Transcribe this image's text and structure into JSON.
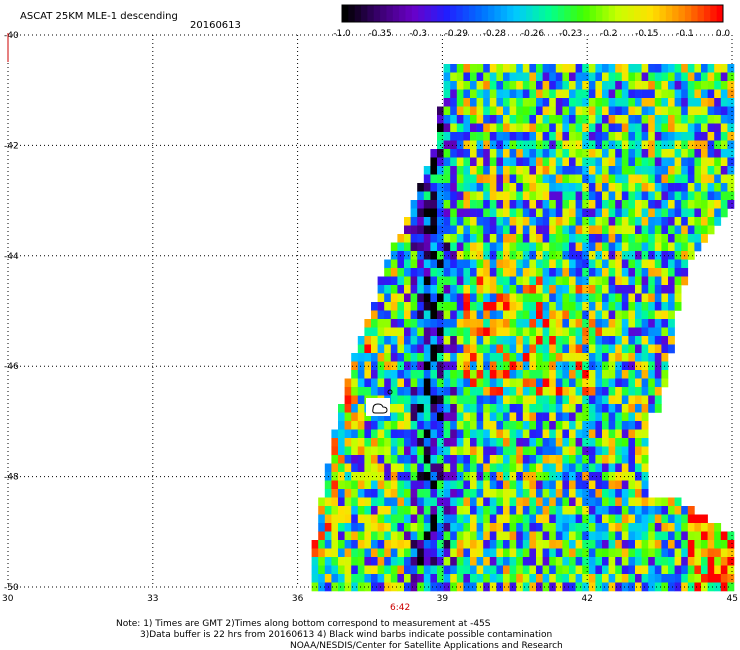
{
  "header": {
    "title": "ASCAT 25KM MLE-1 descending",
    "date": "20160613"
  },
  "colorbar": {
    "labels": [
      "-1.0",
      "-0.35",
      "-0.3",
      "-0.29",
      "-0.28",
      "-0.26",
      "-0.23",
      "-0.2",
      "-0.15",
      "-0.1",
      "0.0"
    ],
    "colors": [
      "#000000",
      "#3a0070",
      "#6a00c8",
      "#2020ff",
      "#0070ff",
      "#00c8ff",
      "#00ff90",
      "#40ff00",
      "#c8ff00",
      "#ffe000",
      "#ff8000",
      "#ff0000"
    ]
  },
  "time_label": "6:42",
  "notes": {
    "line1": "Note: 1) Times are GMT 2)Times along bottom correspond to measurement at -45S",
    "line2": "3)Data buffer is 22 hrs from 20160613 4) Black wind barbs indicate possible contamination",
    "line3": "NOAA/NESDIS/Center for Satellite Applications and Research"
  },
  "chart_data": {
    "type": "heatmap",
    "title": "ASCAT 25KM MLE-1 descending",
    "date": "20160613",
    "xlim": [
      30,
      45
    ],
    "ylim": [
      -50,
      -40
    ],
    "x_ticks": [
      "30",
      "33",
      "36",
      "39",
      "42",
      "45"
    ],
    "y_ticks": [
      "-40",
      "-42",
      "-44",
      "-46",
      "-48",
      "-50"
    ],
    "grid": true,
    "value_scale": {
      "labels": [
        "-1.0",
        "-0.35",
        "-0.3",
        "-0.29",
        "-0.28",
        "-0.26",
        "-0.23",
        "-0.2",
        "-0.15",
        "-0.1",
        "0.0"
      ]
    },
    "swath": {
      "description_edges_lon_at_lat": [
        {
          "lat": -40.5,
          "west": 39.0,
          "east": 45.0
        },
        {
          "lat": -41.8,
          "west": 38.8,
          "east": 45.0
        },
        {
          "lat": -43.0,
          "west": 38.3,
          "east": 45.0
        },
        {
          "lat": -44.0,
          "west": 37.8,
          "east": 44.1
        },
        {
          "lat": -45.0,
          "west": 37.4,
          "east": 43.8
        },
        {
          "lat": -46.0,
          "west": 37.0,
          "east": 43.6
        },
        {
          "lat": -47.0,
          "west": 36.7,
          "east": 43.4
        },
        {
          "lat": -48.0,
          "west": 36.5,
          "east": 43.2
        },
        {
          "lat": -49.0,
          "west": 36.3,
          "east": 45.0
        },
        {
          "lat": -50.0,
          "west": 36.2,
          "east": 45.0
        }
      ],
      "low_band_center_lon": 38.7,
      "high_region": {
        "lon": [
          44.0,
          45.0
        ],
        "lat": [
          -50.0,
          -48.5
        ]
      }
    }
  }
}
